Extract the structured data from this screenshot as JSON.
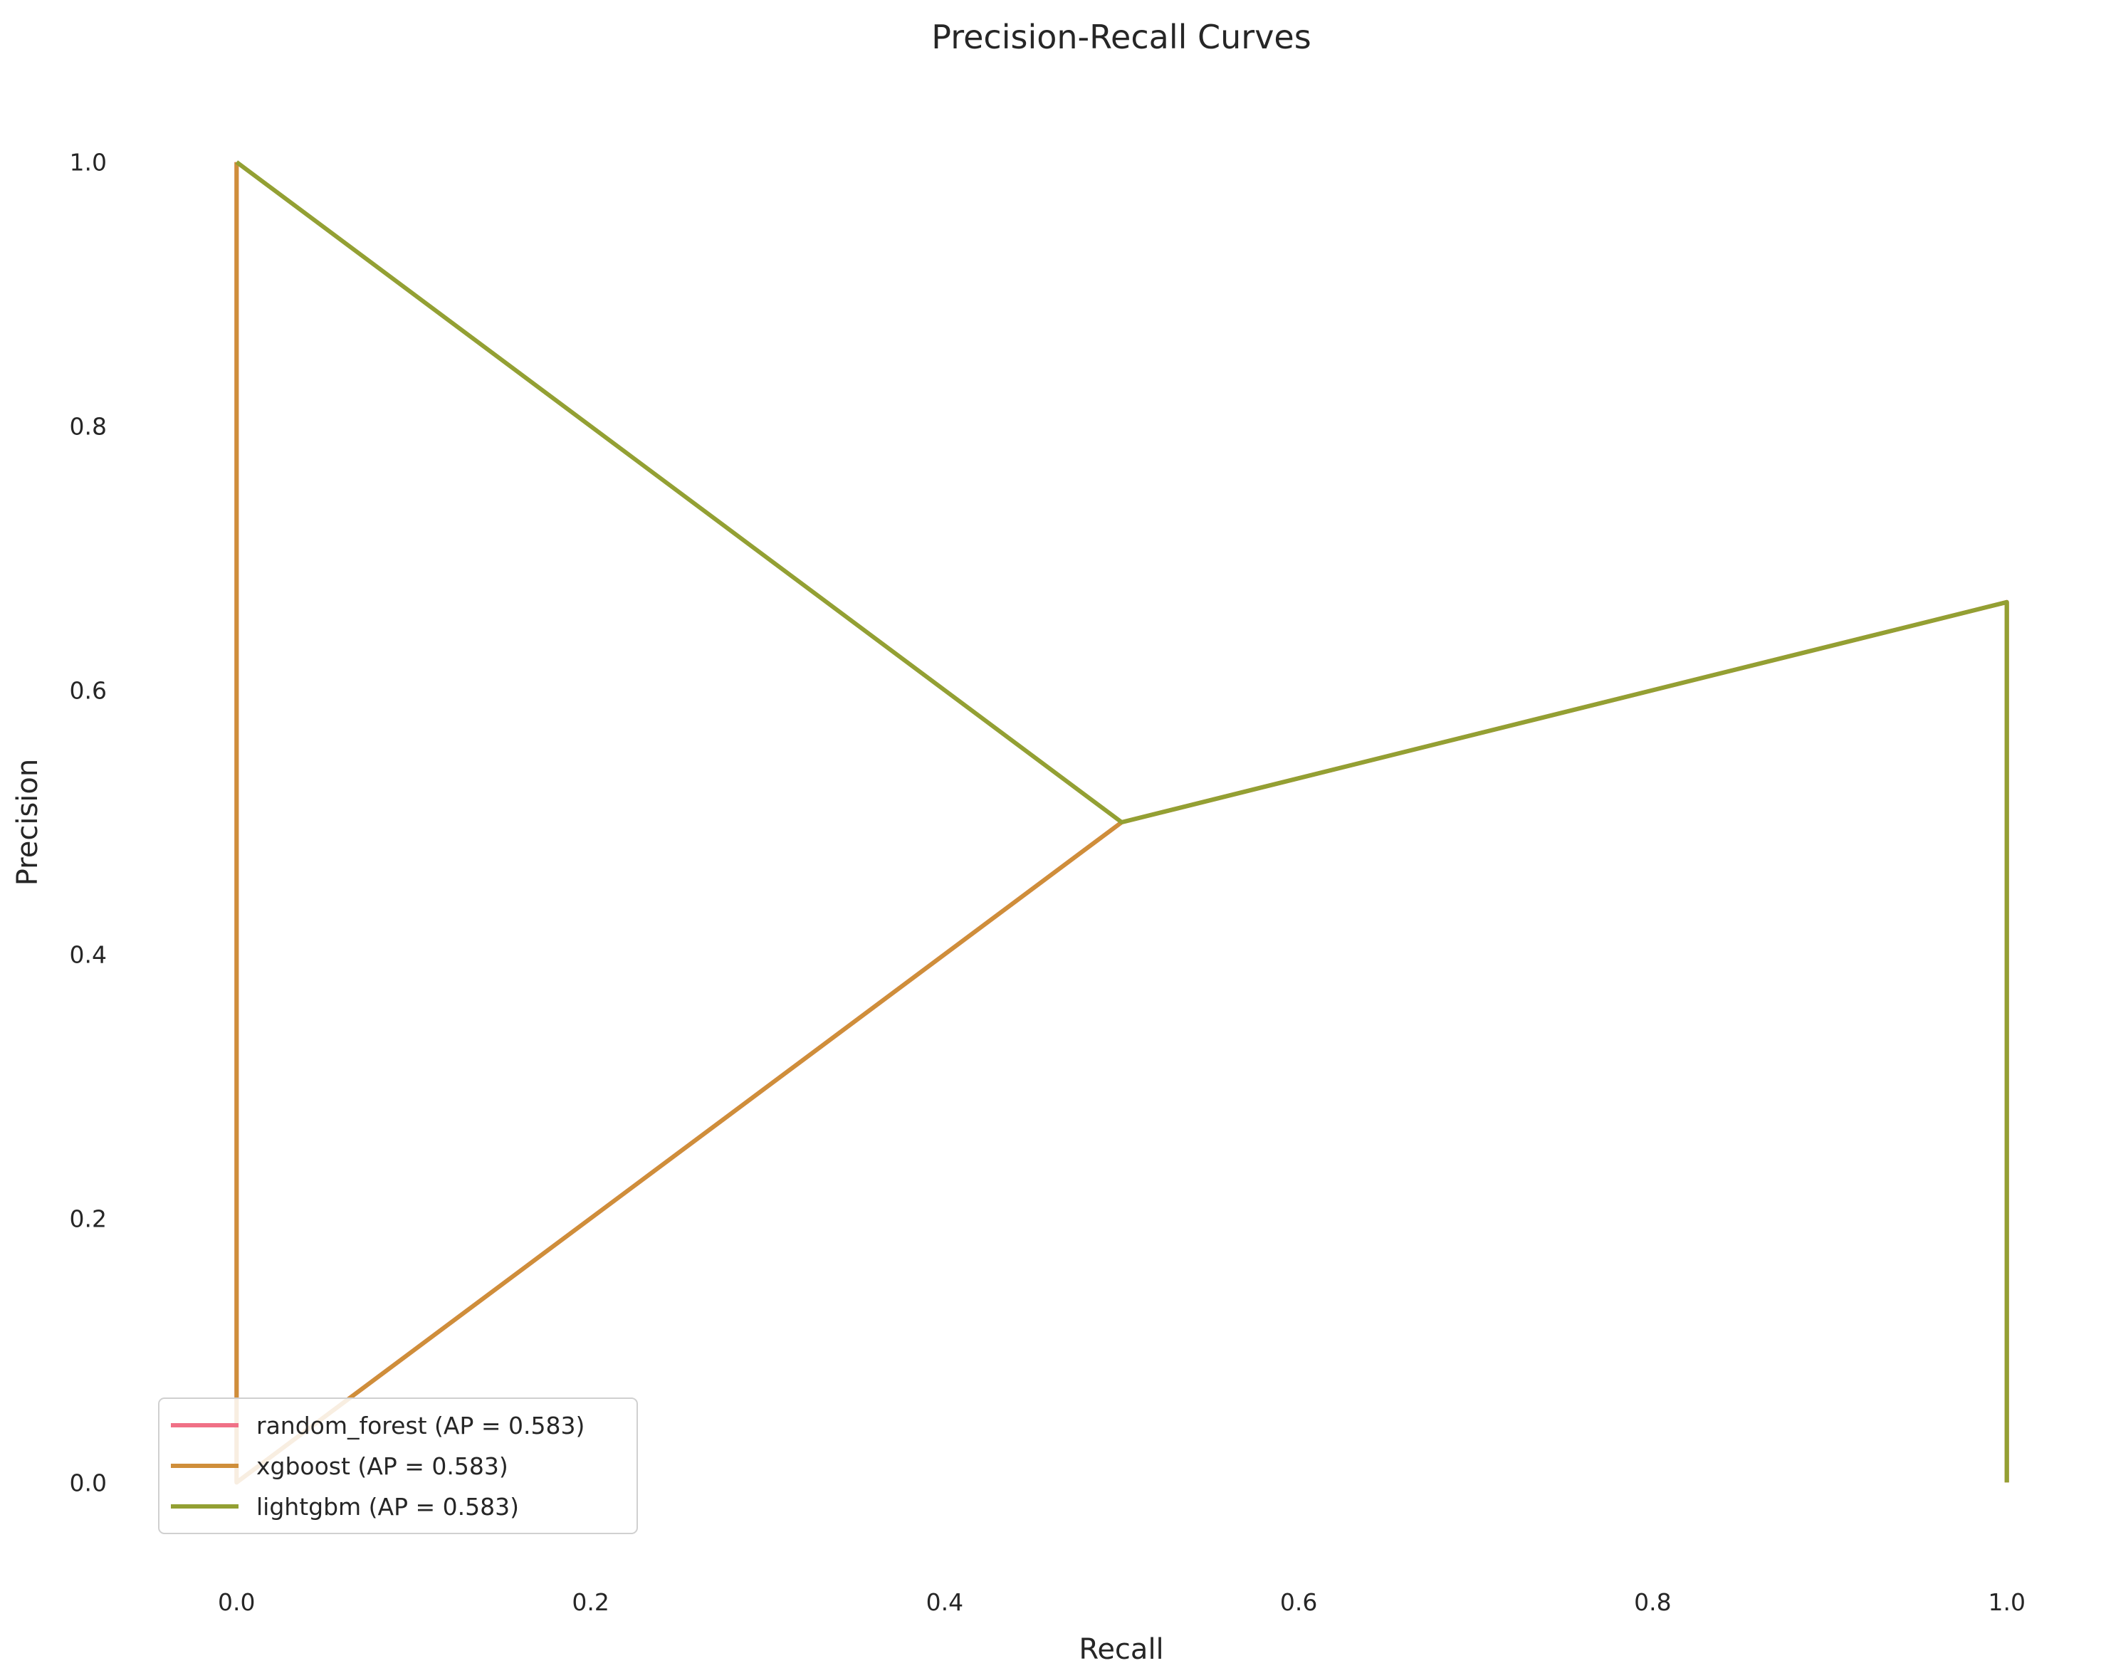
{
  "chart_data": {
    "type": "line",
    "title": "Precision-Recall Curves",
    "xlabel": "Recall",
    "ylabel": "Precision",
    "xlim": [
      -0.05,
      1.05
    ],
    "ylim": [
      -0.05,
      1.05
    ],
    "xticks": [
      "0.0",
      "0.2",
      "0.4",
      "0.6",
      "0.8",
      "1.0"
    ],
    "yticks": [
      "0.0",
      "0.2",
      "0.4",
      "0.6",
      "0.8",
      "1.0"
    ],
    "grid": false,
    "legend_position": "lower-left",
    "series": [
      {
        "name": "random_forest (AP = 0.583)",
        "color": "#f07086",
        "x": [
          1.0,
          1.0,
          0.5,
          0.0,
          0.0
        ],
        "y": [
          0.0,
          0.6667,
          0.5,
          0.0,
          1.0
        ]
      },
      {
        "name": "xgboost (AP = 0.583)",
        "color": "#cf8e3a",
        "x": [
          1.0,
          1.0,
          0.5,
          0.0,
          0.0
        ],
        "y": [
          0.0,
          0.6667,
          0.5,
          0.0,
          1.0
        ]
      },
      {
        "name": "lightgbm (AP = 0.583)",
        "color": "#93a033",
        "x": [
          1.0,
          1.0,
          0.5,
          0.0,
          0.0
        ],
        "y": [
          0.0,
          0.6667,
          0.5,
          1.0,
          1.0
        ]
      }
    ]
  }
}
